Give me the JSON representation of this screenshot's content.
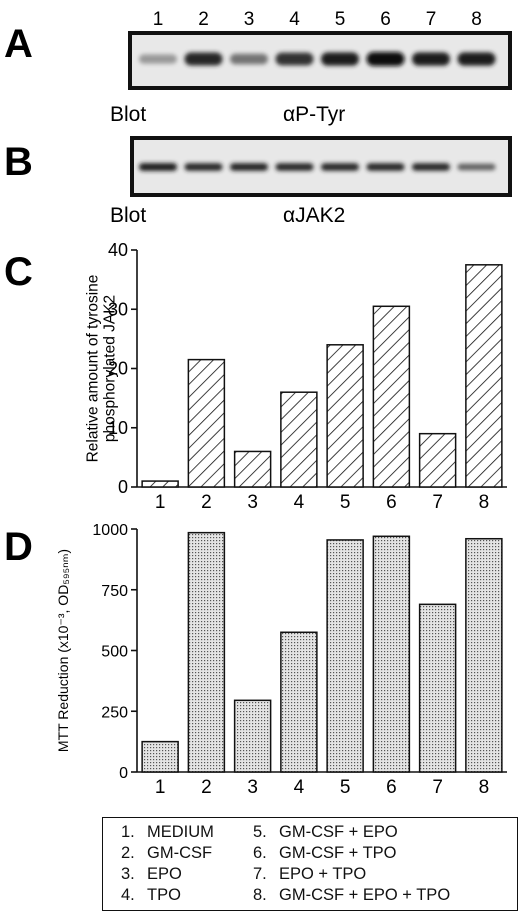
{
  "lanes": [
    "1",
    "2",
    "3",
    "4",
    "5",
    "6",
    "7",
    "8"
  ],
  "panel_a": {
    "letter": "A",
    "blot_label": "Blot",
    "antibody": "αP-Tyr",
    "band_intensity": [
      0.25,
      0.85,
      0.45,
      0.8,
      0.9,
      1.0,
      0.9,
      0.9
    ]
  },
  "panel_b": {
    "letter": "B",
    "blot_label": "Blot",
    "antibody": "αJAK2",
    "band_intensity": [
      0.9,
      0.85,
      0.88,
      0.85,
      0.85,
      0.85,
      0.85,
      0.55
    ]
  },
  "chart_data": [
    {
      "panel": "C",
      "type": "bar",
      "categories": [
        "1",
        "2",
        "3",
        "4",
        "5",
        "6",
        "7",
        "8"
      ],
      "values": [
        1,
        21.5,
        6,
        16,
        24,
        30.5,
        9,
        37.5
      ],
      "ylabel": "Relative amount of tyrosine phosphorylated JAK2",
      "ylim": [
        0,
        40
      ],
      "yticks": [
        "0",
        "10",
        "20",
        "30",
        "40"
      ],
      "fill": "diagonal-hatch",
      "grid": false
    },
    {
      "panel": "D",
      "type": "bar",
      "categories": [
        "1",
        "2",
        "3",
        "4",
        "5",
        "6",
        "7",
        "8"
      ],
      "values": [
        125,
        985,
        295,
        575,
        955,
        970,
        690,
        960
      ],
      "ylabel": "MTT Reduction (x10⁻³, OD₅₉₅ₙₘ)",
      "ylim": [
        0,
        1000
      ],
      "yticks": [
        "0",
        "250",
        "500",
        "750",
        "1000"
      ],
      "fill": "stipple",
      "grid": false
    }
  ],
  "legend": [
    {
      "num": "1.",
      "label": "MEDIUM"
    },
    {
      "num": "2.",
      "label": "GM-CSF"
    },
    {
      "num": "3.",
      "label": "EPO"
    },
    {
      "num": "4.",
      "label": "TPO"
    },
    {
      "num": "5.",
      "label": "GM-CSF + EPO"
    },
    {
      "num": "6.",
      "label": "GM-CSF + TPO"
    },
    {
      "num": "7.",
      "label": "EPO + TPO"
    },
    {
      "num": "8.",
      "label": "GM-CSF + EPO + TPO"
    }
  ],
  "colors": {
    "ink": "#111111",
    "blot_bg": "#e6e6e6",
    "bar_fill": "#d9d9d9"
  }
}
